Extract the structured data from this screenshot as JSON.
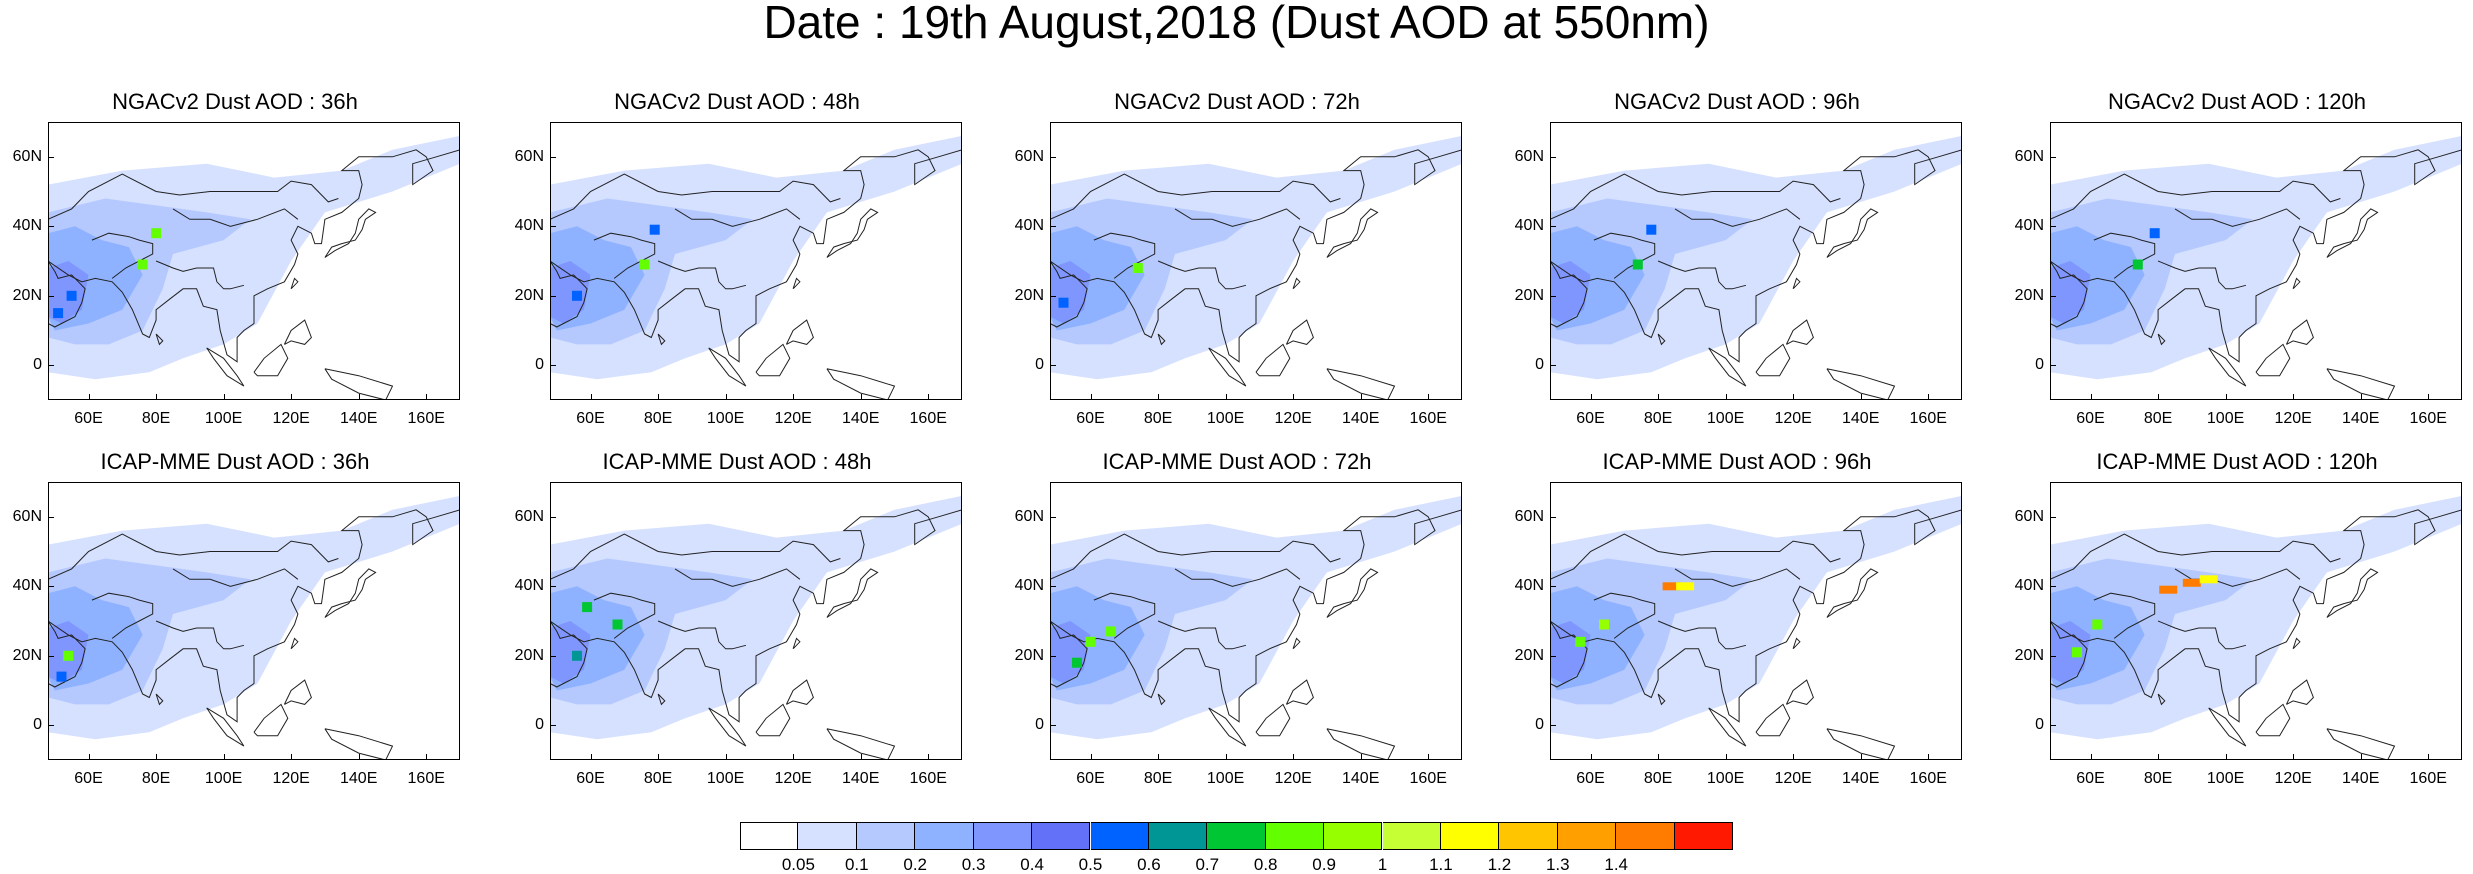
{
  "title": "Date : 19th August,2018 (Dust AOD at 550nm)",
  "lat_labels": [
    "60N",
    "40N",
    "20N",
    "0"
  ],
  "lon_labels": [
    "60E",
    "80E",
    "100E",
    "120E",
    "140E",
    "160E"
  ],
  "map_extent": {
    "lon": [
      48,
      170
    ],
    "lat": [
      -10,
      70
    ]
  },
  "panels": [
    {
      "title": "NGACv2 Dust AOD : 36h",
      "dust": [
        {
          "lon": 80,
          "lat": 38,
          "level": 0.8
        },
        {
          "lon": 76,
          "lat": 29,
          "level": 0.8
        },
        {
          "lon": 55,
          "lat": 20,
          "level": 0.5
        },
        {
          "lon": 51,
          "lat": 15,
          "level": 0.5
        }
      ]
    },
    {
      "title": "NGACv2 Dust AOD : 48h",
      "dust": [
        {
          "lon": 76,
          "lat": 29,
          "level": 0.8
        },
        {
          "lon": 79,
          "lat": 39,
          "level": 0.5
        },
        {
          "lon": 56,
          "lat": 20,
          "level": 0.5
        }
      ]
    },
    {
      "title": "NGACv2 Dust AOD : 72h",
      "dust": [
        {
          "lon": 74,
          "lat": 28,
          "level": 0.8
        },
        {
          "lon": 52,
          "lat": 18,
          "level": 0.5
        }
      ]
    },
    {
      "title": "NGACv2 Dust AOD : 96h",
      "dust": [
        {
          "lon": 74,
          "lat": 29,
          "level": 0.7
        },
        {
          "lon": 78,
          "lat": 39,
          "level": 0.5
        }
      ]
    },
    {
      "title": "NGACv2 Dust AOD : 120h",
      "dust": [
        {
          "lon": 74,
          "lat": 29,
          "level": 0.7
        },
        {
          "lon": 79,
          "lat": 38,
          "level": 0.5
        }
      ]
    },
    {
      "title": "ICAP-MME Dust AOD : 36h",
      "dust": [
        {
          "lon": 54,
          "lat": 20,
          "level": 0.8
        },
        {
          "lon": 52,
          "lat": 14,
          "level": 0.5
        }
      ]
    },
    {
      "title": "ICAP-MME Dust AOD : 48h",
      "dust": [
        {
          "lon": 59,
          "lat": 34,
          "level": 0.7
        },
        {
          "lon": 68,
          "lat": 29,
          "level": 0.7
        },
        {
          "lon": 56,
          "lat": 20,
          "level": 0.6
        }
      ]
    },
    {
      "title": "ICAP-MME Dust AOD : 72h",
      "dust": [
        {
          "lon": 60,
          "lat": 24,
          "level": 0.8
        },
        {
          "lon": 66,
          "lat": 27,
          "level": 0.8
        },
        {
          "lon": 56,
          "lat": 18,
          "level": 0.7
        }
      ]
    },
    {
      "title": "ICAP-MME Dust AOD : 96h",
      "dust": [
        {
          "lon": 84,
          "lat": 40,
          "level": 1.4
        },
        {
          "lon": 88,
          "lat": 40,
          "level": 1.1
        },
        {
          "lon": 57,
          "lat": 24,
          "level": 0.8
        },
        {
          "lon": 64,
          "lat": 29,
          "level": 0.9
        }
      ]
    },
    {
      "title": "ICAP-MME Dust AOD : 120h",
      "dust": [
        {
          "lon": 83,
          "lat": 39,
          "level": 1.4
        },
        {
          "lon": 90,
          "lat": 41,
          "level": 1.4
        },
        {
          "lon": 95,
          "lat": 42,
          "level": 1.1
        },
        {
          "lon": 62,
          "lat": 29,
          "level": 0.8
        },
        {
          "lon": 56,
          "lat": 21,
          "level": 0.8
        }
      ]
    }
  ],
  "colorbar": {
    "colors": [
      "#ffffff",
      "#d6e1ff",
      "#b5c9ff",
      "#8eb2ff",
      "#7f96ff",
      "#6370f8",
      "#0063ff",
      "#009696",
      "#00c633",
      "#63ff00",
      "#96ff00",
      "#c6ff33",
      "#ffff00",
      "#ffc600",
      "#ffa000",
      "#ff7c00",
      "#ff1900"
    ],
    "labels": [
      "0.05",
      "0.1",
      "0.2",
      "0.3",
      "0.4",
      "0.5",
      "0.6",
      "0.7",
      "0.8",
      "0.9",
      "1",
      "1.1",
      "1.2",
      "1.3",
      "1.4"
    ]
  }
}
